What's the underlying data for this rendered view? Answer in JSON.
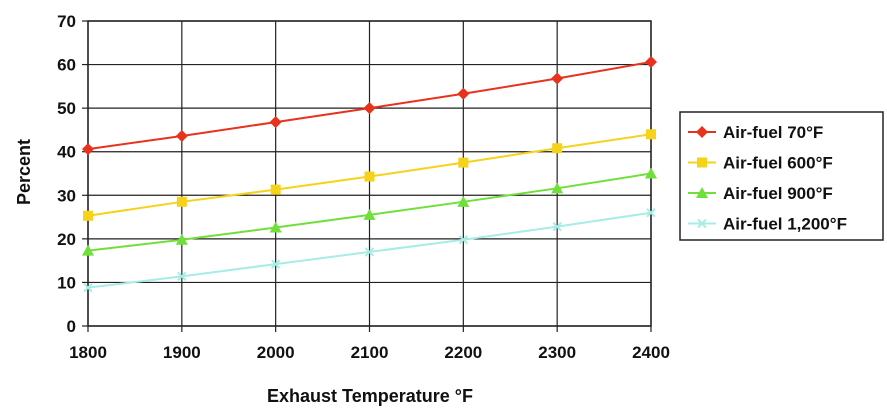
{
  "chart_data": {
    "type": "line",
    "x": [
      1800,
      1900,
      2000,
      2100,
      2200,
      2300,
      2400
    ],
    "xlabel": "Exhaust Temperature °F",
    "ylabel": "Percent",
    "xlim": [
      1800,
      2400
    ],
    "ylim": [
      0,
      70
    ],
    "x_ticks": [
      "1800",
      "1900",
      "2000",
      "2100",
      "2200",
      "2300",
      "2400"
    ],
    "y_ticks": [
      "0",
      "10",
      "20",
      "30",
      "40",
      "50",
      "60",
      "70"
    ],
    "grid": true,
    "legend_position": "right",
    "series": [
      {
        "name": "Air-fuel 70°F",
        "color": "#e8321e",
        "marker": "diamond",
        "values": [
          40.6,
          43.6,
          46.8,
          50.0,
          53.3,
          56.8,
          60.6
        ]
      },
      {
        "name": "Air-fuel 600°F",
        "color": "#f6d21a",
        "marker": "square",
        "values": [
          25.3,
          28.5,
          31.3,
          34.3,
          37.5,
          40.8,
          44.0
        ]
      },
      {
        "name": "Air-fuel 900°F",
        "color": "#6fe03a",
        "marker": "triangle",
        "values": [
          17.3,
          19.8,
          22.6,
          25.5,
          28.5,
          31.6,
          35.0
        ]
      },
      {
        "name": "Air-fuel 1,200°F",
        "color": "#a8ece6",
        "marker": "x",
        "values": [
          8.8,
          11.4,
          14.2,
          17.0,
          19.8,
          22.8,
          26.0
        ]
      }
    ]
  }
}
